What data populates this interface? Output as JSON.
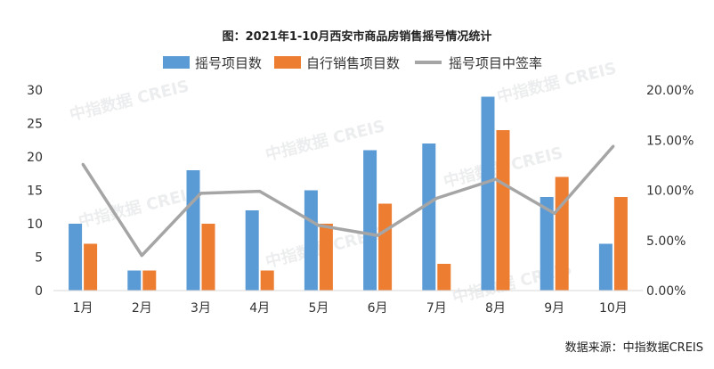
{
  "chart_data": {
    "type": "bar",
    "title": "图：2021年1-10月西安市商品房销售摇号情况统计",
    "categories": [
      "1月",
      "2月",
      "3月",
      "4月",
      "5月",
      "6月",
      "7月",
      "8月",
      "9月",
      "10月"
    ],
    "series": [
      {
        "name": "摇号项目数",
        "type": "bar",
        "axis": "left",
        "color": "#5b9bd5",
        "values": [
          10,
          3,
          18,
          12,
          15,
          21,
          22,
          29,
          14,
          7
        ]
      },
      {
        "name": "自行销售项目数",
        "type": "bar",
        "axis": "left",
        "color": "#ed7d31",
        "values": [
          7,
          3,
          10,
          3,
          10,
          13,
          4,
          24,
          17,
          14
        ]
      },
      {
        "name": "摇号项目中签率",
        "type": "line",
        "axis": "right",
        "color": "#a5a5a5",
        "values": [
          12.6,
          3.5,
          9.7,
          9.9,
          6.5,
          5.5,
          9.2,
          11.1,
          7.7,
          14.4
        ]
      }
    ],
    "y_left": {
      "min": 0,
      "max": 30,
      "ticks": [
        "0",
        "5",
        "10",
        "15",
        "20",
        "25",
        "30"
      ]
    },
    "y_right": {
      "min": 0,
      "max": 20,
      "ticks": [
        "0.00%",
        "5.00%",
        "10.00%",
        "15.00%",
        "20.00%"
      ]
    },
    "legend_position": "top",
    "grid": false,
    "watermark": "中指数据 CREIS",
    "source": "数据来源：中指数据CREIS"
  }
}
